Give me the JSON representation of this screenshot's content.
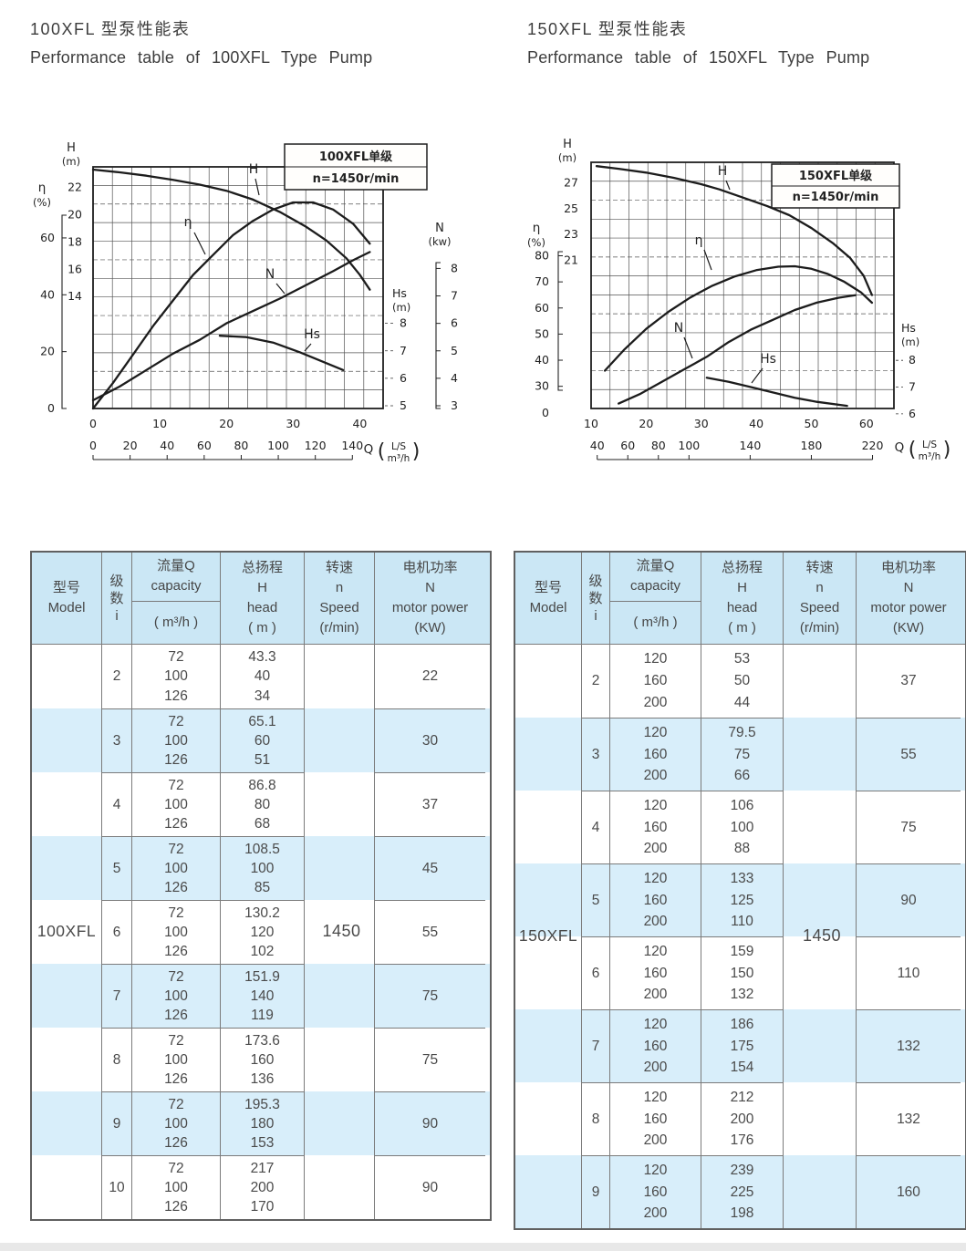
{
  "page": {
    "left_title_zh": "100XFL 型泵性能表",
    "left_title_en": "Performance table of 100XFL Type Pump",
    "right_title_zh": "150XFL 型泵性能表",
    "right_title_en": "Performance table of 150XFL Type Pump"
  },
  "colors": {
    "header_bg": "#cbe7f5",
    "stripe_bg": "#d8eefa",
    "ink": "#222222",
    "table_text": "#4a4a4a",
    "border": "#7b7b7b"
  },
  "chart_data": [
    {
      "type": "line",
      "title_box": [
        "100XFL单级",
        "n=1450r/min"
      ],
      "x_axis": {
        "label": "Q",
        "unit_primary": "L/S",
        "unit_secondary": "m³/h",
        "ticks_ls": [
          0,
          10,
          20,
          30,
          40
        ],
        "ticks_m3h": [
          0,
          20,
          40,
          60,
          80,
          100,
          120,
          140
        ],
        "xlim_ls": [
          0,
          43.5
        ]
      },
      "y_axes": {
        "H": {
          "label": "H",
          "unit": "(m)",
          "ticks": [
            22,
            20,
            18,
            16,
            14
          ]
        },
        "eta": {
          "label": "η",
          "unit": "(%)",
          "ticks": [
            60,
            40,
            20,
            0
          ]
        },
        "N": {
          "label": "N",
          "unit": "(kw)",
          "ticks": [
            8,
            7,
            6,
            5,
            4,
            3
          ]
        },
        "Hs": {
          "label": "Hs",
          "unit": "(m)",
          "ticks": [
            8,
            7,
            6,
            5
          ]
        }
      },
      "grid": true,
      "series": [
        {
          "key": "H",
          "name": "H",
          "axis": "H",
          "x": [
            0,
            4,
            8,
            12,
            16,
            20,
            24,
            28,
            32,
            35,
            38,
            40,
            41.5
          ],
          "y": [
            23.3,
            23.1,
            22.85,
            22.55,
            22.2,
            21.75,
            21.1,
            20.2,
            19.1,
            18.1,
            16.8,
            15.6,
            14.5
          ]
        },
        {
          "key": "eta",
          "name": "η",
          "axis": "eta",
          "x": [
            0,
            3,
            6,
            9,
            12,
            15,
            18,
            21,
            24,
            27,
            30,
            33,
            36,
            39,
            41.5
          ],
          "y": [
            0,
            9,
            19,
            29,
            38,
            47,
            54,
            61,
            66,
            70,
            72.5,
            72.5,
            70,
            65,
            58
          ]
        },
        {
          "key": "N",
          "name": "N",
          "axis": "N",
          "x": [
            0,
            4,
            8,
            12,
            16,
            20,
            24,
            28,
            32,
            36,
            39,
            41.5
          ],
          "y": [
            3.2,
            3.7,
            4.3,
            4.9,
            5.4,
            6,
            6.45,
            6.9,
            7.4,
            7.9,
            8.3,
            8.6
          ]
        },
        {
          "key": "Hs",
          "name": "Hs",
          "axis": "Hs",
          "x": [
            19,
            23,
            27,
            31,
            34.5,
            37.5
          ],
          "y": [
            7.55,
            7.5,
            7.3,
            6.95,
            6.6,
            6.3
          ]
        }
      ]
    },
    {
      "type": "line",
      "title_box": [
        "150XFL单级",
        "n=1450r/min"
      ],
      "x_axis": {
        "label": "Q",
        "unit_primary": "L/S",
        "unit_secondary": "m³/h",
        "ticks_ls": [
          10,
          20,
          30,
          40,
          50,
          60
        ],
        "ticks_m3h": [
          40,
          60,
          80,
          100,
          140,
          180,
          220
        ],
        "xlim_ls": [
          10,
          65
        ]
      },
      "y_axes": {
        "H": {
          "label": "H",
          "unit": "(m)",
          "ticks": [
            27,
            25,
            23,
            21
          ]
        },
        "eta": {
          "label": "η",
          "unit": "(%)",
          "ticks": [
            80,
            70,
            60,
            50,
            40,
            30,
            0
          ]
        },
        "Hs": {
          "label": "Hs",
          "unit": "(m)",
          "ticks": [
            8,
            7,
            6
          ]
        }
      },
      "grid": true,
      "note": "N curve drawn without labeled axis in source scan",
      "series": [
        {
          "key": "H",
          "name": "H",
          "axis": "H",
          "x": [
            11,
            15,
            20,
            25,
            30,
            33.3,
            38,
            42,
            46,
            50,
            54,
            57,
            59.5,
            61
          ],
          "y": [
            28.3,
            28.1,
            27.8,
            27.4,
            26.9,
            26.5,
            25.8,
            25.2,
            24.5,
            23.5,
            22.3,
            21.2,
            19.8,
            18.3
          ]
        },
        {
          "key": "eta",
          "name": "η",
          "axis": "eta",
          "x": [
            12.5,
            16,
            20,
            24,
            28,
            32,
            36,
            40,
            44,
            47,
            50,
            53,
            56,
            59,
            61
          ],
          "y": [
            36,
            44,
            52,
            58.5,
            64,
            68.5,
            72,
            74.5,
            75.8,
            76,
            75,
            73,
            70,
            66,
            62
          ]
        },
        {
          "key": "N",
          "name": "N",
          "axis": "N_rel",
          "x": [
            15,
            19,
            23,
            27,
            31,
            35,
            39,
            43,
            47,
            51,
            55,
            58
          ],
          "y": [
            0.02,
            0.06,
            0.11,
            0.16,
            0.21,
            0.27,
            0.32,
            0.36,
            0.4,
            0.43,
            0.45,
            0.46
          ]
        },
        {
          "key": "Hs",
          "name": "Hs",
          "axis": "Hs",
          "x": [
            31,
            35,
            39,
            43,
            47,
            51,
            56.5
          ],
          "y": [
            7.35,
            7.2,
            7,
            6.8,
            6.6,
            6.45,
            6.3
          ]
        }
      ]
    }
  ],
  "table_header": {
    "model": [
      "型号",
      "Model"
    ],
    "stage": [
      "级",
      "数",
      "i"
    ],
    "capacity_top": [
      "流量Q",
      "capacity"
    ],
    "capacity_unit": "( m³/h )",
    "head": [
      "总扬程",
      "H",
      "head",
      "( m )"
    ],
    "speed": [
      "转速",
      "n",
      "Speed",
      "(r/min)"
    ],
    "power": [
      "电机功率",
      "N",
      "motor power",
      "(KW)"
    ]
  },
  "tables": [
    {
      "model": "100XFL",
      "speed": "1450",
      "rows": [
        {
          "i": "2",
          "q": [
            "72",
            "100",
            "126"
          ],
          "h": [
            "43.3",
            "40",
            "34"
          ],
          "n": "22"
        },
        {
          "i": "3",
          "q": [
            "72",
            "100",
            "126"
          ],
          "h": [
            "65.1",
            "60",
            "51"
          ],
          "n": "30"
        },
        {
          "i": "4",
          "q": [
            "72",
            "100",
            "126"
          ],
          "h": [
            "86.8",
            "80",
            "68"
          ],
          "n": "37"
        },
        {
          "i": "5",
          "q": [
            "72",
            "100",
            "126"
          ],
          "h": [
            "108.5",
            "100",
            "85"
          ],
          "n": "45"
        },
        {
          "i": "6",
          "q": [
            "72",
            "100",
            "126"
          ],
          "h": [
            "130.2",
            "120",
            "102"
          ],
          "n": "55"
        },
        {
          "i": "7",
          "q": [
            "72",
            "100",
            "126"
          ],
          "h": [
            "151.9",
            "140",
            "119"
          ],
          "n": "75"
        },
        {
          "i": "8",
          "q": [
            "72",
            "100",
            "126"
          ],
          "h": [
            "173.6",
            "160",
            "136"
          ],
          "n": "75"
        },
        {
          "i": "9",
          "q": [
            "72",
            "100",
            "126"
          ],
          "h": [
            "195.3",
            "180",
            "153"
          ],
          "n": "90"
        },
        {
          "i": "10",
          "q": [
            "72",
            "100",
            "126"
          ],
          "h": [
            "217",
            "200",
            "170"
          ],
          "n": "90"
        }
      ]
    },
    {
      "model": "150XFL",
      "speed": "1450",
      "rows": [
        {
          "i": "2",
          "q": [
            "120",
            "160",
            "200"
          ],
          "h": [
            "53",
            "50",
            "44"
          ],
          "n": "37"
        },
        {
          "i": "3",
          "q": [
            "120",
            "160",
            "200"
          ],
          "h": [
            "79.5",
            "75",
            "66"
          ],
          "n": "55"
        },
        {
          "i": "4",
          "q": [
            "120",
            "160",
            "200"
          ],
          "h": [
            "106",
            "100",
            "88"
          ],
          "n": "75"
        },
        {
          "i": "5",
          "q": [
            "120",
            "160",
            "200"
          ],
          "h": [
            "133",
            "125",
            "110"
          ],
          "n": "90"
        },
        {
          "i": "6",
          "q": [
            "120",
            "160",
            "200"
          ],
          "h": [
            "159",
            "150",
            "132"
          ],
          "n": "110"
        },
        {
          "i": "7",
          "q": [
            "120",
            "160",
            "200"
          ],
          "h": [
            "186",
            "175",
            "154"
          ],
          "n": "132"
        },
        {
          "i": "8",
          "q": [
            "120",
            "160",
            "200"
          ],
          "h": [
            "212",
            "200",
            "176"
          ],
          "n": "132"
        },
        {
          "i": "9",
          "q": [
            "120",
            "160",
            "200"
          ],
          "h": [
            "239",
            "225",
            "198"
          ],
          "n": "160"
        }
      ]
    }
  ]
}
